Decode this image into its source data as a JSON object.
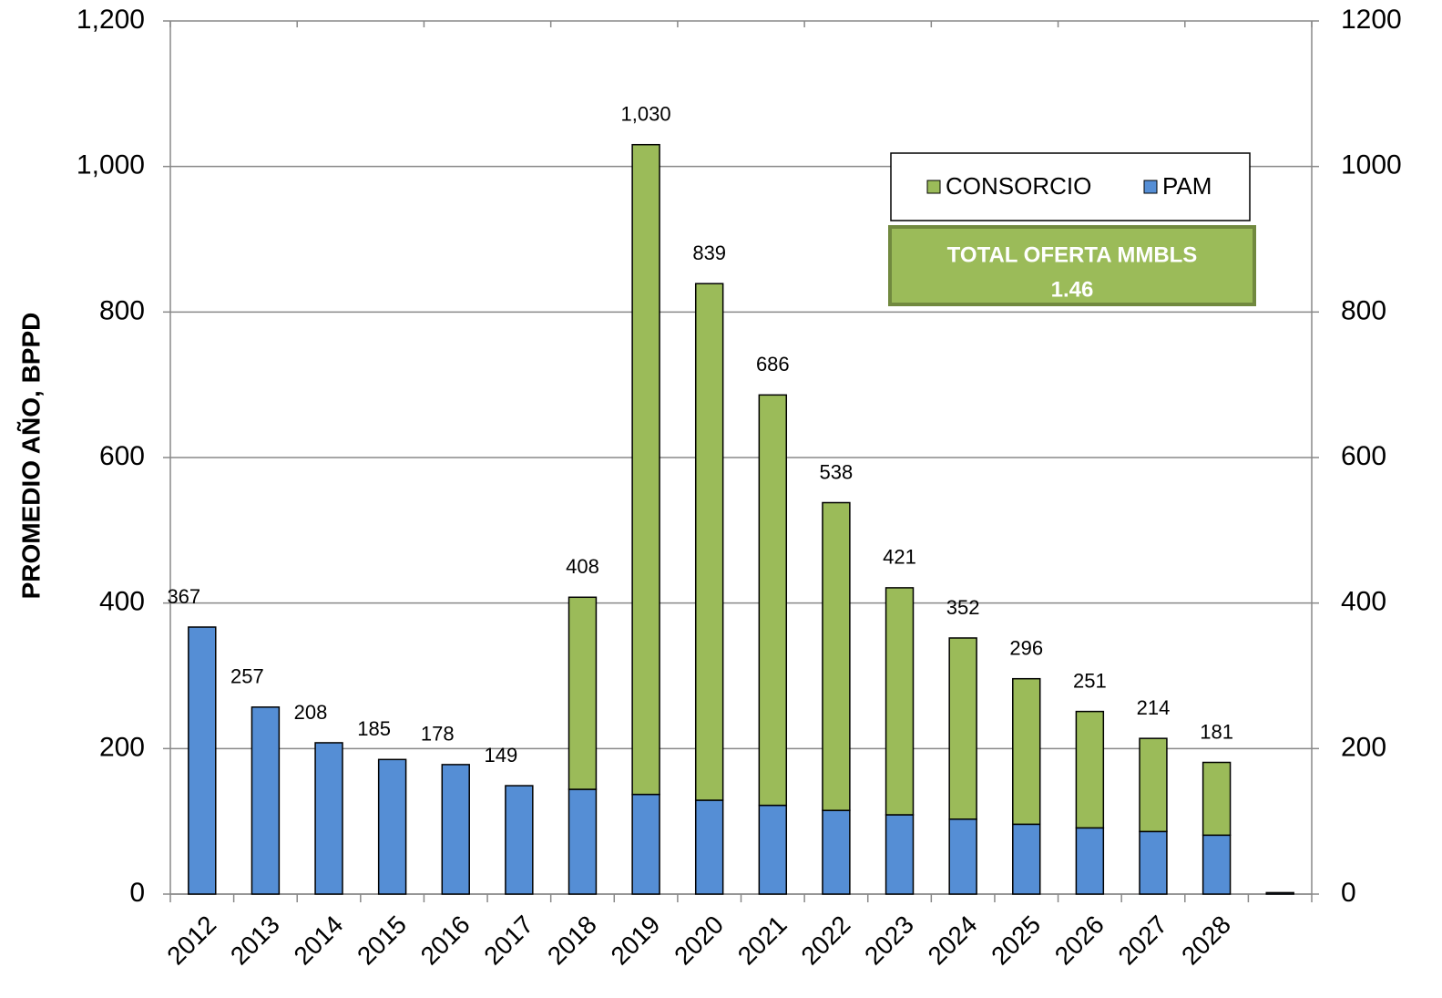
{
  "chart_data": {
    "type": "stacked_bar",
    "y_label": "PROMEDIO AÑO, BPPD",
    "categories": [
      "2012",
      "2013",
      "2014",
      "2015",
      "2016",
      "2017",
      "2018",
      "2019",
      "2020",
      "2021",
      "2022",
      "2023",
      "2024",
      "2025",
      "2026",
      "2027",
      "2028",
      null
    ],
    "series": [
      {
        "name": "PAM",
        "color": "#558ed5",
        "values": [
          367,
          257,
          208,
          185,
          178,
          149,
          144,
          137,
          129,
          122,
          115,
          109,
          103,
          96,
          91,
          86,
          81,
          2
        ]
      },
      {
        "name": "CONSORCIO",
        "color": "#9bbb59",
        "values": [
          0,
          0,
          0,
          0,
          0,
          0,
          264,
          893,
          710,
          564,
          423,
          312,
          249,
          200,
          160,
          128,
          100,
          0
        ]
      }
    ],
    "totals": [
      367,
      257,
      208,
      185,
      178,
      149,
      408,
      1030,
      839,
      686,
      538,
      421,
      352,
      296,
      251,
      214,
      181,
      null
    ],
    "total_labels": [
      "367",
      "257",
      "208",
      "185",
      "178",
      "149",
      "408",
      "1,030",
      "839",
      "686",
      "538",
      "421",
      "352",
      "296",
      "251",
      "214",
      "181",
      null
    ],
    "ylim": [
      0,
      1200
    ],
    "yticks": [
      0,
      200,
      400,
      600,
      800,
      {
        "value": 1000,
        "label": "1,000"
      },
      {
        "value": 1200,
        "label": "1,200"
      }
    ],
    "y2lim": [
      0,
      1200
    ],
    "y2ticks": [
      0,
      200,
      400,
      600,
      800,
      1000,
      1200
    ],
    "grid": true,
    "legend": "upper right",
    "annotation": {
      "title": "TOTAL OFERTA MMBLS",
      "value": "1.46"
    }
  }
}
